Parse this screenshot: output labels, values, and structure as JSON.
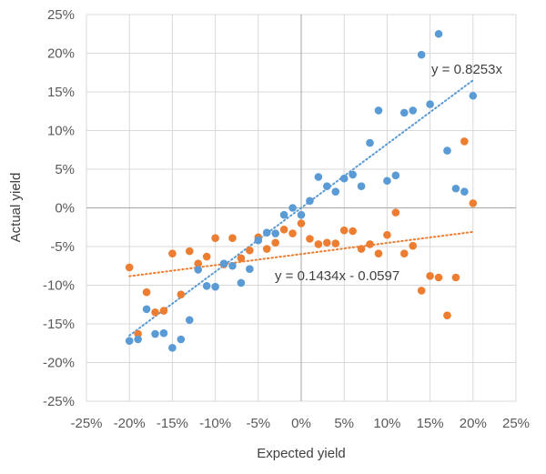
{
  "chart_data": {
    "type": "scatter",
    "xlabel": "Expected yield",
    "ylabel": "Actual yield",
    "xlim": [
      -0.25,
      0.25
    ],
    "ylim": [
      -0.25,
      0.25
    ],
    "grid": true,
    "x_ticks": [
      "-25%",
      "-20%",
      "-15%",
      "-10%",
      "-5%",
      "0%",
      "5%",
      "10%",
      "15%",
      "20%",
      "25%"
    ],
    "y_ticks": [
      "25%",
      "20%",
      "15%",
      "10%",
      "5%",
      "0%",
      "-5%",
      "-10%",
      "-15%",
      "-20%",
      "-25%"
    ],
    "tick_values": [
      -0.25,
      -0.2,
      -0.15,
      -0.1,
      -0.05,
      0,
      0.05,
      0.1,
      0.15,
      0.2,
      0.25
    ],
    "series": [
      {
        "color": "#5B9BD5",
        "points": [
          [
            -0.2,
            -0.172
          ],
          [
            -0.19,
            -0.17
          ],
          [
            -0.18,
            -0.131
          ],
          [
            -0.17,
            -0.163
          ],
          [
            -0.16,
            -0.162
          ],
          [
            -0.15,
            -0.181
          ],
          [
            -0.14,
            -0.17
          ],
          [
            -0.13,
            -0.145
          ],
          [
            -0.12,
            -0.08
          ],
          [
            -0.11,
            -0.101
          ],
          [
            -0.1,
            -0.102
          ],
          [
            -0.09,
            -0.072
          ],
          [
            -0.08,
            -0.075
          ],
          [
            -0.07,
            -0.097
          ],
          [
            -0.06,
            -0.079
          ],
          [
            -0.05,
            -0.042
          ],
          [
            -0.04,
            -0.032
          ],
          [
            -0.03,
            -0.033
          ],
          [
            -0.02,
            -0.009
          ],
          [
            -0.01,
            0.0
          ],
          [
            0.0,
            -0.009
          ],
          [
            0.01,
            0.009
          ],
          [
            0.02,
            0.04
          ],
          [
            0.03,
            0.028
          ],
          [
            0.04,
            0.021
          ],
          [
            0.05,
            0.038
          ],
          [
            0.06,
            0.043
          ],
          [
            0.07,
            0.028
          ],
          [
            0.08,
            0.084
          ],
          [
            0.09,
            0.126
          ],
          [
            0.1,
            0.035
          ],
          [
            0.11,
            0.042
          ],
          [
            0.12,
            0.123
          ],
          [
            0.13,
            0.126
          ],
          [
            0.14,
            0.198
          ],
          [
            0.15,
            0.134
          ],
          [
            0.16,
            0.225
          ],
          [
            0.17,
            0.074
          ],
          [
            0.18,
            0.025
          ],
          [
            0.19,
            0.021
          ],
          [
            0.2,
            0.145
          ]
        ],
        "trendline": {
          "slope": 0.8253,
          "intercept": 0,
          "x_range": [
            -0.2,
            0.2
          ],
          "label": "y = 0.8253x"
        }
      },
      {
        "color": "#ED7D31",
        "points": [
          [
            -0.2,
            -0.077
          ],
          [
            -0.19,
            -0.163
          ],
          [
            -0.18,
            -0.109
          ],
          [
            -0.17,
            -0.135
          ],
          [
            -0.16,
            -0.133
          ],
          [
            -0.15,
            -0.059
          ],
          [
            -0.14,
            -0.112
          ],
          [
            -0.13,
            -0.056
          ],
          [
            -0.12,
            -0.072
          ],
          [
            -0.11,
            -0.063
          ],
          [
            -0.1,
            -0.039
          ],
          [
            -0.09,
            -0.073
          ],
          [
            -0.08,
            -0.039
          ],
          [
            -0.07,
            -0.065
          ],
          [
            -0.06,
            -0.055
          ],
          [
            -0.05,
            -0.038
          ],
          [
            -0.04,
            -0.053
          ],
          [
            -0.03,
            -0.045
          ],
          [
            -0.02,
            -0.028
          ],
          [
            -0.01,
            -0.033
          ],
          [
            0.0,
            -0.02
          ],
          [
            0.01,
            -0.04
          ],
          [
            0.02,
            -0.047
          ],
          [
            0.03,
            -0.045
          ],
          [
            0.04,
            -0.046
          ],
          [
            0.05,
            -0.029
          ],
          [
            0.06,
            -0.03
          ],
          [
            0.07,
            -0.053
          ],
          [
            0.08,
            -0.047
          ],
          [
            0.09,
            -0.059
          ],
          [
            0.1,
            -0.035
          ],
          [
            0.11,
            -0.006
          ],
          [
            0.12,
            -0.059
          ],
          [
            0.13,
            -0.049
          ],
          [
            0.14,
            -0.107
          ],
          [
            0.15,
            -0.088
          ],
          [
            0.16,
            -0.09
          ],
          [
            0.17,
            -0.139
          ],
          [
            0.18,
            -0.09
          ],
          [
            0.19,
            0.086
          ],
          [
            0.2,
            0.006
          ]
        ],
        "trendline": {
          "slope": 0.1434,
          "intercept": -0.0597,
          "x_range": [
            -0.2,
            0.2
          ],
          "label": "y = 0.1434x - 0.0597"
        }
      }
    ]
  }
}
